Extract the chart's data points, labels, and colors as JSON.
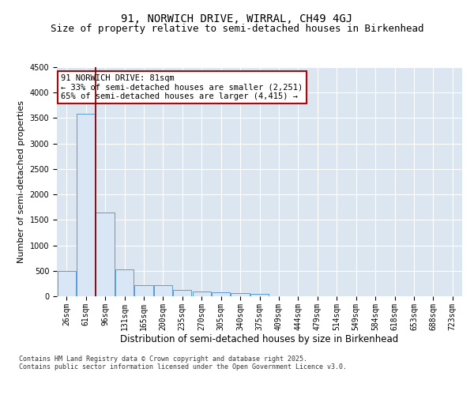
{
  "title_line1": "91, NORWICH DRIVE, WIRRAL, CH49 4GJ",
  "title_line2": "Size of property relative to semi-detached houses in Birkenhead",
  "xlabel": "Distribution of semi-detached houses by size in Birkenhead",
  "ylabel": "Number of semi-detached properties",
  "categories": [
    "26sqm",
    "61sqm",
    "96sqm",
    "131sqm",
    "165sqm",
    "200sqm",
    "235sqm",
    "270sqm",
    "305sqm",
    "340sqm",
    "375sqm",
    "409sqm",
    "444sqm",
    "479sqm",
    "514sqm",
    "549sqm",
    "584sqm",
    "618sqm",
    "653sqm",
    "688sqm",
    "723sqm"
  ],
  "values": [
    500,
    3580,
    1650,
    530,
    220,
    210,
    130,
    100,
    70,
    55,
    40,
    0,
    0,
    0,
    0,
    0,
    0,
    0,
    0,
    0,
    0
  ],
  "bar_color": "#d9e6f5",
  "bar_edge_color": "#5b9bd5",
  "vline_x": 1.5,
  "vline_color": "#8b0000",
  "annotation_text": "91 NORWICH DRIVE: 81sqm\n← 33% of semi-detached houses are smaller (2,251)\n65% of semi-detached houses are larger (4,415) →",
  "annotation_box_color": "#ffffff",
  "annotation_box_edge": "#c00000",
  "ylim": [
    0,
    4500
  ],
  "yticks": [
    0,
    500,
    1000,
    1500,
    2000,
    2500,
    3000,
    3500,
    4000,
    4500
  ],
  "background_color": "#dce6f1",
  "footer_text": "Contains HM Land Registry data © Crown copyright and database right 2025.\nContains public sector information licensed under the Open Government Licence v3.0.",
  "title_fontsize": 10,
  "subtitle_fontsize": 9,
  "tick_fontsize": 7,
  "ylabel_fontsize": 8,
  "xlabel_fontsize": 8.5,
  "annot_fontsize": 7.5,
  "footer_fontsize": 6
}
